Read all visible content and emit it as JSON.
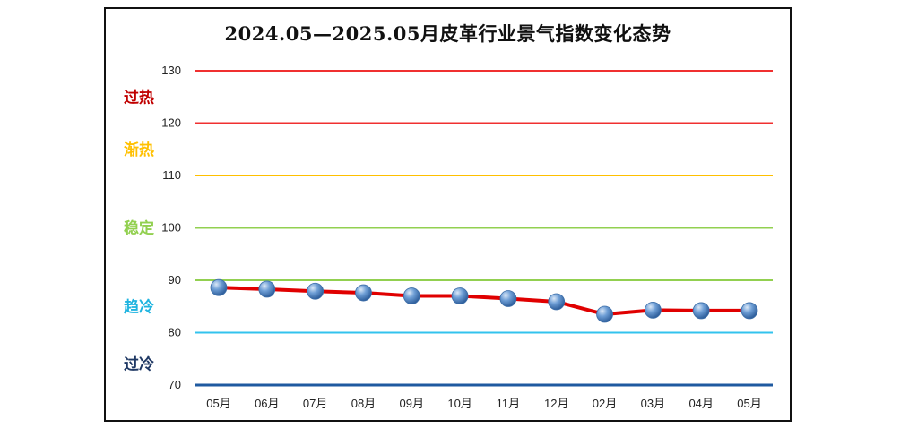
{
  "chart_data": {
    "type": "line",
    "title": "2024.05—2025.05月皮革行业景气指数变化态势",
    "categories": [
      "05月",
      "06月",
      "07月",
      "08月",
      "09月",
      "10月",
      "11月",
      "12月",
      "02月",
      "03月",
      "04月",
      "05月"
    ],
    "series": [
      {
        "values": [
          88.6,
          88.3,
          87.9,
          87.6,
          87.0,
          87.0,
          86.5,
          85.9,
          83.5,
          84.3,
          84.2,
          84.2
        ],
        "color": "#e00000"
      }
    ],
    "ylim": [
      70,
      130
    ],
    "yticks": [
      70,
      80,
      90,
      100,
      110,
      120,
      130
    ],
    "grid": false,
    "reference_lines": [
      {
        "value": 130,
        "color": "#f03030"
      },
      {
        "value": 120,
        "color": "#f03030"
      },
      {
        "value": 110,
        "color": "#ffc000"
      },
      {
        "value": 100,
        "color": "#92d050"
      },
      {
        "value": 90,
        "color": "#92d050"
      },
      {
        "value": 80,
        "color": "#33c3ee"
      },
      {
        "value": 70,
        "color": "#1f5aa0"
      }
    ],
    "zones": [
      {
        "label": "过热",
        "color": "#c00000",
        "center": 125
      },
      {
        "label": "渐热",
        "color": "#ffc000",
        "center": 115
      },
      {
        "label": "稳定",
        "color": "#92d050",
        "center": 100
      },
      {
        "label": "趋冷",
        "color": "#1fb4e0",
        "center": 85
      },
      {
        "label": "过冷",
        "color": "#1f3864",
        "center": 74
      }
    ],
    "marker_color": "#4f81bd"
  }
}
